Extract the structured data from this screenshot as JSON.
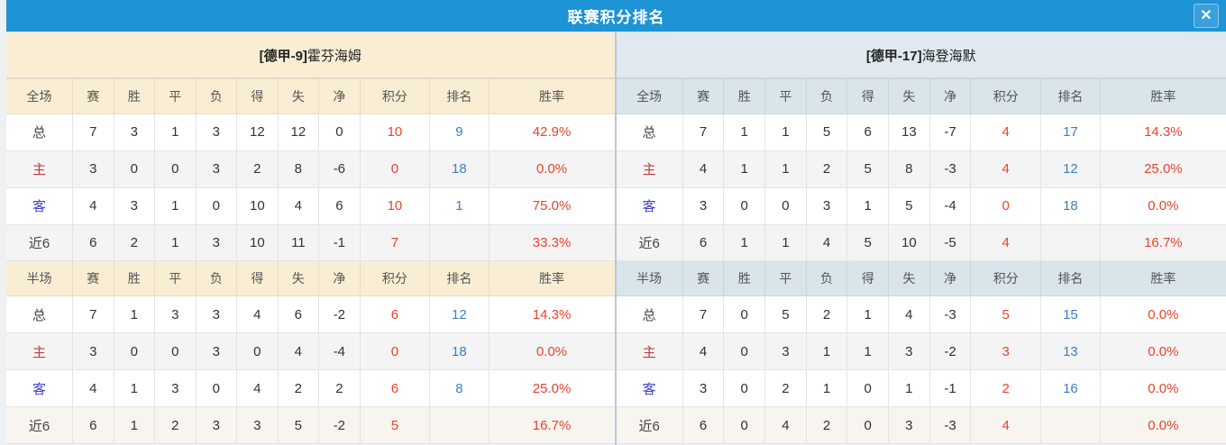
{
  "dialog": {
    "title": "联赛积分排名",
    "close_icon": "✕"
  },
  "columns": {
    "full_label": "全场",
    "half_label": "半场",
    "stats": [
      "赛",
      "胜",
      "平",
      "负",
      "得",
      "失",
      "净",
      "积分",
      "排名",
      "胜率"
    ]
  },
  "colors": {
    "titlebar_blue": "#1e93d6",
    "left_header_cream": "#f9eed4",
    "right_header_blue": "#dfe9ef",
    "points_red": "#e8432e",
    "rank_blue": "#3d7fc4",
    "home_label_red": "#c23a44",
    "away_label_blue": "#4040c8"
  },
  "teams": [
    {
      "title_prefix": "[德甲-9]",
      "title_name": "霍芬海姆",
      "sections": [
        {
          "label": "全场",
          "rows": [
            {
              "label": "总",
              "type": "total",
              "cells": [
                "7",
                "3",
                "1",
                "3",
                "12",
                "12",
                "0"
              ],
              "points": "10",
              "rank": "9",
              "rate": "42.9%"
            },
            {
              "label": "主",
              "type": "home",
              "cells": [
                "3",
                "0",
                "0",
                "3",
                "2",
                "8",
                "-6"
              ],
              "points": "0",
              "rank": "18",
              "rate": "0.0%"
            },
            {
              "label": "客",
              "type": "away",
              "cells": [
                "4",
                "3",
                "1",
                "0",
                "10",
                "4",
                "6"
              ],
              "points": "10",
              "rank": "1",
              "rate": "75.0%"
            },
            {
              "label": "近6",
              "type": "recent",
              "cells": [
                "6",
                "2",
                "1",
                "3",
                "10",
                "11",
                "-1"
              ],
              "points": "7",
              "rank": "",
              "rate": "33.3%"
            }
          ]
        },
        {
          "label": "半场",
          "rows": [
            {
              "label": "总",
              "type": "total",
              "cells": [
                "7",
                "1",
                "3",
                "3",
                "4",
                "6",
                "-2"
              ],
              "points": "6",
              "rank": "12",
              "rate": "14.3%"
            },
            {
              "label": "主",
              "type": "home",
              "cells": [
                "3",
                "0",
                "0",
                "3",
                "0",
                "4",
                "-4"
              ],
              "points": "0",
              "rank": "18",
              "rate": "0.0%"
            },
            {
              "label": "客",
              "type": "away",
              "cells": [
                "4",
                "1",
                "3",
                "0",
                "4",
                "2",
                "2"
              ],
              "points": "6",
              "rank": "8",
              "rate": "25.0%"
            },
            {
              "label": "近6",
              "type": "recent",
              "cells": [
                "6",
                "1",
                "2",
                "3",
                "3",
                "5",
                "-2"
              ],
              "points": "5",
              "rank": "",
              "rate": "16.7%"
            }
          ]
        }
      ]
    },
    {
      "title_prefix": "[德甲-17]",
      "title_name": "海登海默",
      "sections": [
        {
          "label": "全场",
          "rows": [
            {
              "label": "总",
              "type": "total",
              "cells": [
                "7",
                "1",
                "1",
                "5",
                "6",
                "13",
                "-7"
              ],
              "points": "4",
              "rank": "17",
              "rate": "14.3%"
            },
            {
              "label": "主",
              "type": "home",
              "cells": [
                "4",
                "1",
                "1",
                "2",
                "5",
                "8",
                "-3"
              ],
              "points": "4",
              "rank": "12",
              "rate": "25.0%"
            },
            {
              "label": "客",
              "type": "away",
              "cells": [
                "3",
                "0",
                "0",
                "3",
                "1",
                "5",
                "-4"
              ],
              "points": "0",
              "rank": "18",
              "rate": "0.0%"
            },
            {
              "label": "近6",
              "type": "recent",
              "cells": [
                "6",
                "1",
                "1",
                "4",
                "5",
                "10",
                "-5"
              ],
              "points": "4",
              "rank": "",
              "rate": "16.7%"
            }
          ]
        },
        {
          "label": "半场",
          "rows": [
            {
              "label": "总",
              "type": "total",
              "cells": [
                "7",
                "0",
                "5",
                "2",
                "1",
                "4",
                "-3"
              ],
              "points": "5",
              "rank": "15",
              "rate": "0.0%"
            },
            {
              "label": "主",
              "type": "home",
              "cells": [
                "4",
                "0",
                "3",
                "1",
                "1",
                "3",
                "-2"
              ],
              "points": "3",
              "rank": "13",
              "rate": "0.0%"
            },
            {
              "label": "客",
              "type": "away",
              "cells": [
                "3",
                "0",
                "2",
                "1",
                "0",
                "1",
                "-1"
              ],
              "points": "2",
              "rank": "16",
              "rate": "0.0%"
            },
            {
              "label": "近6",
              "type": "recent",
              "cells": [
                "6",
                "0",
                "4",
                "2",
                "0",
                "3",
                "-3"
              ],
              "points": "4",
              "rank": "",
              "rate": "0.0%"
            }
          ]
        }
      ]
    }
  ]
}
